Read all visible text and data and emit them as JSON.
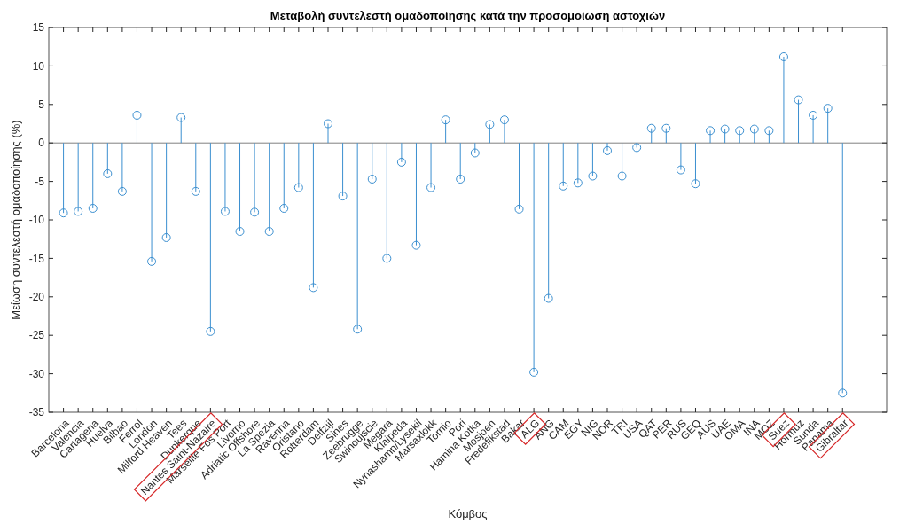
{
  "chart_data": {
    "type": "lollipop",
    "title": "Μεταβολή συντελεστή ομαδοποίησης κατά την προσομοίωση αστοχιών",
    "xlabel": "Κόμβος",
    "ylabel": "Μείωση συντελεστή ομαδοποίησης (%)",
    "categories": [
      "Barcelona",
      "Valencia",
      "Cartagena",
      "Huelva",
      "Bilbao",
      "Ferrol",
      "London",
      "Milford Heaven",
      "Tees",
      "Dunkerque",
      "Nantes Saint-Nazaire",
      "Marseille Fos Port",
      "Livorno",
      "Adriatic Offshore",
      "La Spezia",
      "Ravenna",
      "Oristano",
      "Rotterdam",
      "Delfzijl",
      "Sines",
      "Zeebrugge",
      "Swinoujscie",
      "Megara",
      "Klaipeda",
      "Nynashamn/Lysekil",
      "Marsaxlokk",
      "Tornio",
      "Pori",
      "Hamina Kotka",
      "Mosjoen",
      "Fredefikstad",
      "Bakar",
      "ALG",
      "ANG",
      "CAM",
      "EGY",
      "NIG",
      "NOR",
      "TRI",
      "USA",
      "QAT",
      "PER",
      "RUS",
      "GEQ",
      "AUS",
      "UAE",
      "OMA",
      "INA",
      "MOZ",
      "Suez",
      "Hormuz",
      "Sunda",
      "Panama",
      "Gibraltar"
    ],
    "series": [
      {
        "color": "#3b8fd0",
        "values": [
          -9.1,
          -8.9,
          -8.5,
          -4.0,
          -6.3,
          3.6,
          -15.4,
          -12.3,
          3.3,
          -6.3,
          -24.5,
          -8.9,
          -11.5,
          -9.0,
          -11.5,
          -8.5,
          -5.8,
          -18.8,
          2.5,
          -6.9,
          -24.2,
          -4.7,
          -15.0,
          -2.5,
          -13.3,
          -5.8,
          3.0,
          -4.7,
          -1.3,
          2.4,
          3.0,
          -8.6,
          -29.8,
          -20.2,
          -5.6,
          -5.2,
          -4.3,
          -1.0,
          -4.3,
          -0.6,
          1.9,
          1.9,
          -3.5,
          -5.3,
          1.6,
          1.8,
          1.6,
          1.8,
          1.6,
          11.2,
          5.6,
          3.6,
          4.5,
          -32.5
        ]
      }
    ],
    "ylim": [
      -35,
      15
    ],
    "yticks": [
      -35,
      -30,
      -25,
      -20,
      -15,
      -10,
      -5,
      0,
      5,
      10,
      15
    ],
    "marker": "circle",
    "grid": false,
    "ref_lines": [
      {
        "axis": "y",
        "value": 0,
        "color": "#808080"
      }
    ]
  }
}
